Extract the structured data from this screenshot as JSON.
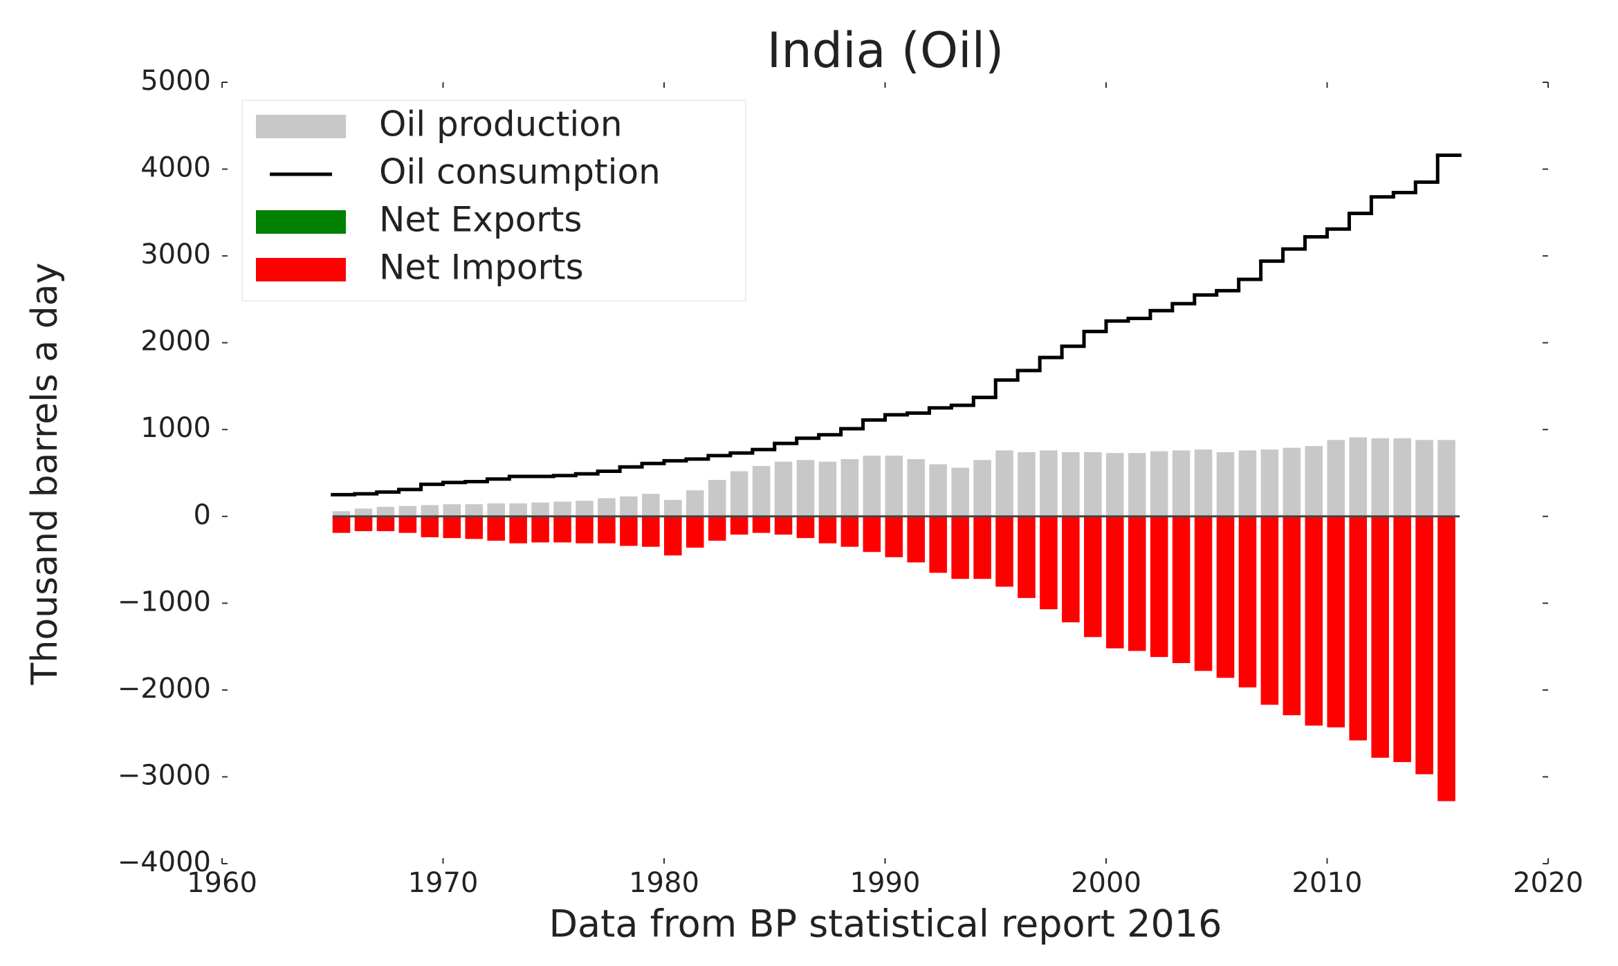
{
  "chart_data": {
    "type": "bar",
    "title": "India (Oil)",
    "xlabel": "Data from BP statistical report 2016",
    "ylabel": "Thousand barrels a day",
    "x": [
      1965,
      1966,
      1967,
      1968,
      1969,
      1970,
      1971,
      1972,
      1973,
      1974,
      1975,
      1976,
      1977,
      1978,
      1979,
      1980,
      1981,
      1982,
      1983,
      1984,
      1985,
      1986,
      1987,
      1988,
      1989,
      1990,
      1991,
      1992,
      1993,
      1994,
      1995,
      1996,
      1997,
      1998,
      1999,
      2000,
      2001,
      2002,
      2003,
      2004,
      2005,
      2006,
      2007,
      2008,
      2009,
      2010,
      2011,
      2012,
      2013,
      2014,
      2015
    ],
    "series": [
      {
        "name": "Oil production",
        "color": "#c8c8c8",
        "kind": "bar",
        "values": [
          60,
          90,
          110,
          120,
          130,
          140,
          140,
          150,
          150,
          160,
          170,
          180,
          210,
          230,
          260,
          190,
          300,
          420,
          520,
          580,
          630,
          650,
          630,
          660,
          700,
          700,
          660,
          600,
          560,
          650,
          760,
          740,
          760,
          740,
          740,
          730,
          730,
          750,
          760,
          770,
          740,
          760,
          770,
          790,
          810,
          880,
          910,
          900,
          900,
          880,
          880
        ]
      },
      {
        "name": "Oil consumption",
        "color": "#000000",
        "kind": "step",
        "values": [
          250,
          260,
          280,
          310,
          370,
          390,
          400,
          430,
          460,
          460,
          470,
          490,
          520,
          570,
          610,
          640,
          660,
          700,
          730,
          770,
          840,
          900,
          940,
          1010,
          1110,
          1170,
          1190,
          1250,
          1280,
          1370,
          1570,
          1680,
          1830,
          1960,
          2130,
          2250,
          2280,
          2370,
          2450,
          2550,
          2600,
          2730,
          2940,
          3080,
          3220,
          3310,
          3490,
          3680,
          3730,
          3850,
          4160
        ]
      },
      {
        "name": "Net Exports",
        "color": "#008000",
        "kind": "bar",
        "values": [
          0,
          0,
          0,
          0,
          0,
          0,
          0,
          0,
          0,
          0,
          0,
          0,
          0,
          0,
          0,
          0,
          0,
          0,
          0,
          0,
          0,
          0,
          0,
          0,
          0,
          0,
          0,
          0,
          0,
          0,
          0,
          0,
          0,
          0,
          0,
          0,
          0,
          0,
          0,
          0,
          0,
          0,
          0,
          0,
          0,
          0,
          0,
          0,
          0,
          0,
          0
        ]
      },
      {
        "name": "Net Imports",
        "color": "#ff0000",
        "kind": "bar",
        "values": [
          -190,
          -170,
          -170,
          -190,
          -240,
          -250,
          -260,
          -280,
          -310,
          -300,
          -300,
          -310,
          -310,
          -340,
          -350,
          -450,
          -360,
          -280,
          -210,
          -190,
          -210,
          -250,
          -310,
          -350,
          -410,
          -470,
          -530,
          -650,
          -720,
          -720,
          -810,
          -940,
          -1070,
          -1220,
          -1390,
          -1520,
          -1550,
          -1620,
          -1690,
          -1780,
          -1860,
          -1970,
          -2170,
          -2290,
          -2410,
          -2430,
          -2580,
          -2780,
          -2830,
          -2970,
          -3280
        ]
      }
    ],
    "xlim": [
      1960,
      2020
    ],
    "xticks": [
      1960,
      1970,
      1980,
      1990,
      2000,
      2010,
      2020
    ],
    "ylim": [
      -4000,
      5000
    ],
    "yticks": [
      {
        "value": -4000,
        "label": "−4000"
      },
      {
        "value": -3000,
        "label": "−3000"
      },
      {
        "value": -2000,
        "label": "−2000"
      },
      {
        "value": -1000,
        "label": "−1000"
      },
      0,
      1000,
      2000,
      3000,
      4000,
      5000
    ],
    "legend": "upper left"
  }
}
